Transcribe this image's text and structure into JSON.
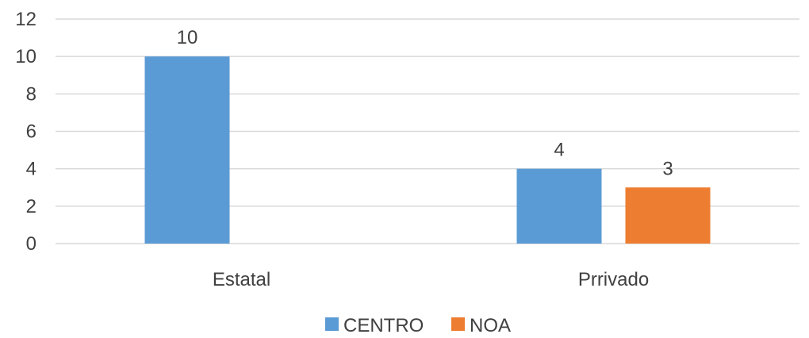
{
  "chart_data": {
    "type": "bar",
    "categories": [
      "Estatal",
      "Prrivado"
    ],
    "series": [
      {
        "name": "CENTRO",
        "values": [
          10,
          4
        ],
        "color": "#5b9bd5"
      },
      {
        "name": "NOA",
        "values": [
          null,
          3
        ],
        "color": "#ed7d31"
      }
    ],
    "ylim": [
      0,
      12
    ],
    "yticks": [
      0,
      2,
      4,
      6,
      8,
      10,
      12
    ],
    "grid": true,
    "data_labels": true,
    "legend": "bottom",
    "title": "",
    "xlabel": "",
    "ylabel": ""
  }
}
